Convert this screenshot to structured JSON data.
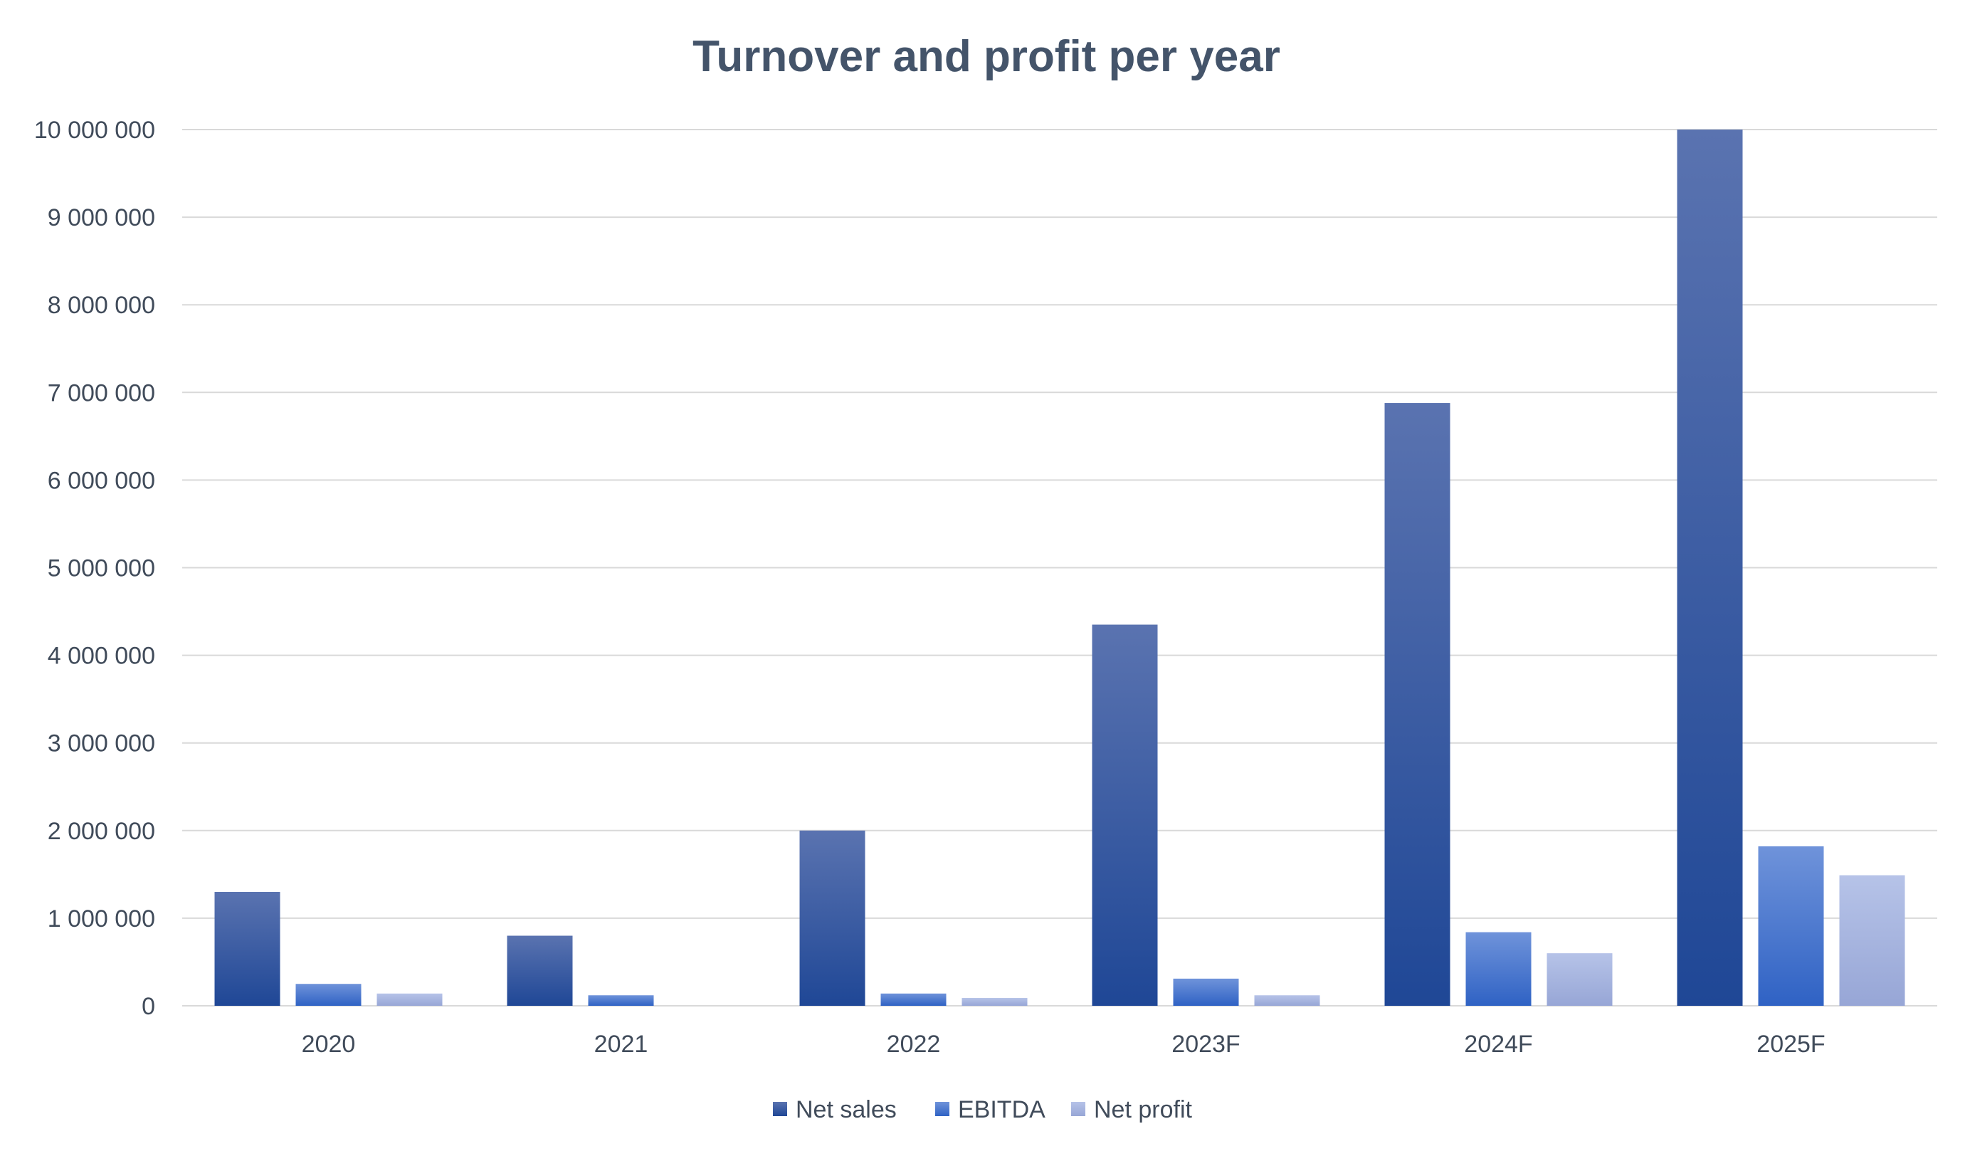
{
  "chart_data": {
    "type": "bar",
    "title": "Turnover and profit per year",
    "xlabel": "",
    "ylabel": "",
    "categories": [
      "2020",
      "2021",
      "2022",
      "2023F",
      "2024F",
      "2025F"
    ],
    "ylim": [
      0,
      10000000
    ],
    "yticks": [
      0,
      1000000,
      2000000,
      3000000,
      4000000,
      5000000,
      6000000,
      7000000,
      8000000,
      9000000,
      10000000
    ],
    "ytick_labels": [
      "0",
      "1 000 000",
      "2 000 000",
      "3 000 000",
      "4 000 000",
      "5 000 000",
      "6 000 000",
      "7 000 000",
      "8 000 000",
      "9 000 000",
      "10 000 000"
    ],
    "grid": true,
    "legend_position": "bottom",
    "series": [
      {
        "name": "Net sales",
        "values": [
          1300000,
          800000,
          2000000,
          4350000,
          6880000,
          10000000
        ],
        "color_top": "#5a73b0",
        "color_bottom": "#1f4796"
      },
      {
        "name": "EBITDA",
        "values": [
          250000,
          120000,
          140000,
          310000,
          840000,
          1820000
        ],
        "color_top": "#6f93da",
        "color_bottom": "#2f62c4"
      },
      {
        "name": "Net profit",
        "values": [
          140000,
          0,
          90000,
          120000,
          600000,
          1490000
        ],
        "color_top": "#b6c3e8",
        "color_bottom": "#97a6d6"
      }
    ],
    "colors": {
      "title": "#44546a",
      "text": "#404b5a",
      "grid": "#d9d9d9"
    }
  }
}
